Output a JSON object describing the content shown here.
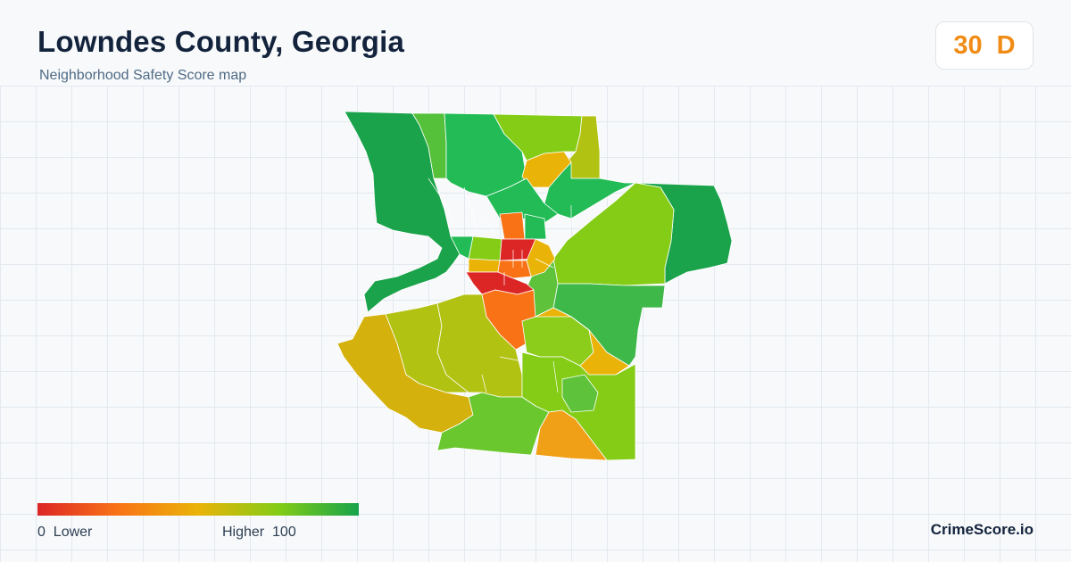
{
  "header": {
    "title": "Lowndes County, Georgia",
    "subtitle": "Neighborhood Safety Score map"
  },
  "score": {
    "value": "30",
    "grade": "D",
    "color": "#f08c16"
  },
  "legend": {
    "min_value": "0",
    "min_label": "Lower",
    "max_label": "Higher",
    "max_value": "100",
    "colors": [
      "#dc2626",
      "#f97316",
      "#eab308",
      "#84cc16",
      "#16a34a"
    ]
  },
  "brand": "CrimeScore.io"
}
